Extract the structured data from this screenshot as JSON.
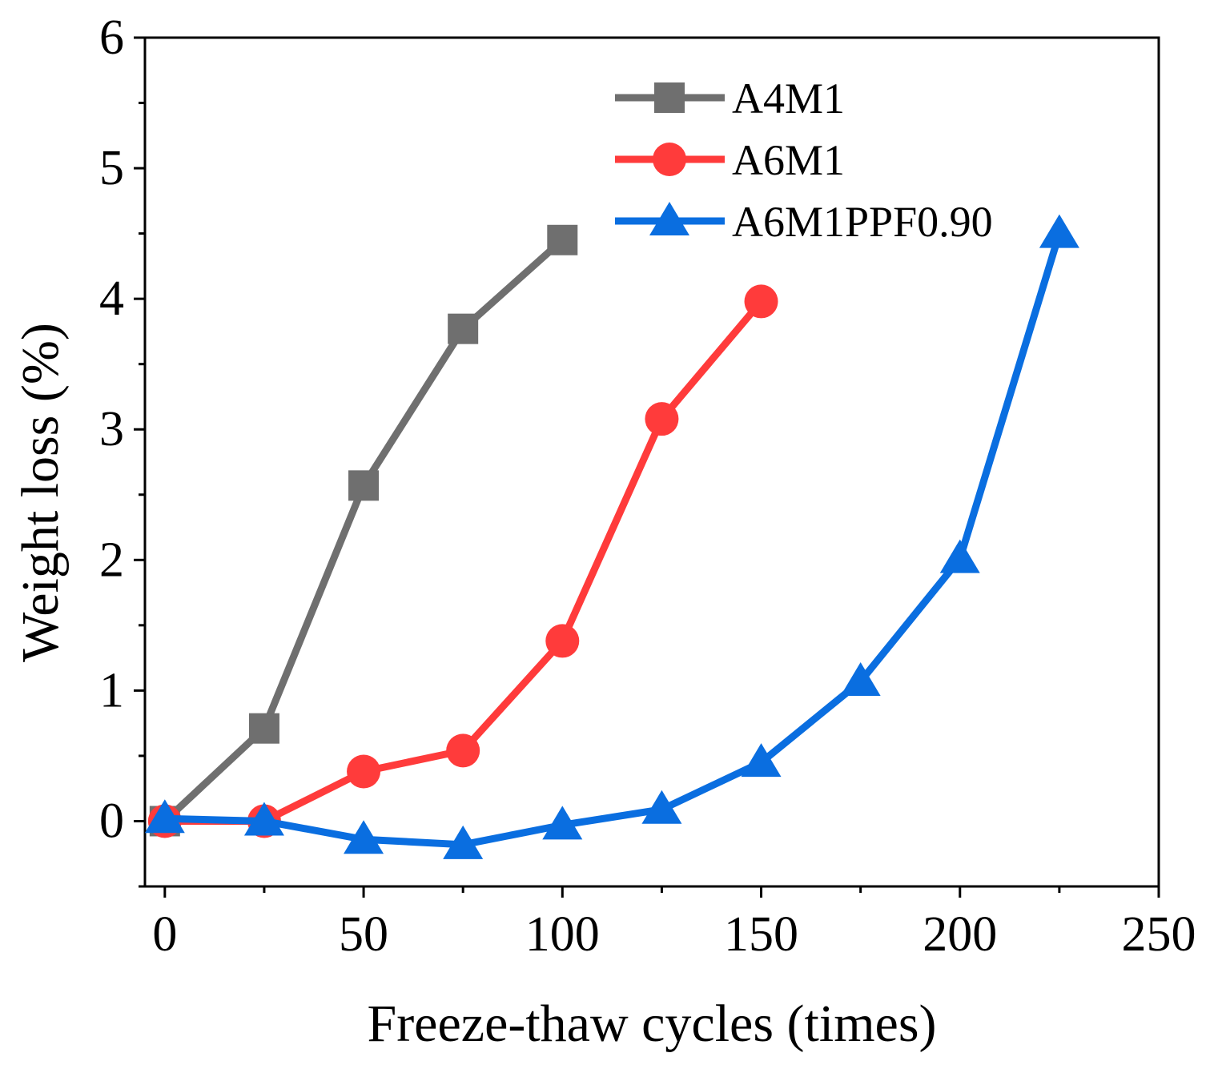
{
  "chart_data": {
    "type": "line",
    "title": "",
    "xlabel": "Freeze-thaw cycles (times)",
    "ylabel": "Weight loss  (%)",
    "xlim": [
      -5,
      250
    ],
    "ylim": [
      -0.5,
      6
    ],
    "xticks": [
      0,
      50,
      100,
      150,
      200,
      250
    ],
    "xtick_labels": [
      "0",
      "50",
      "100",
      "150",
      "200",
      "250"
    ],
    "yticks": [
      0,
      1,
      2,
      3,
      4,
      5,
      6
    ],
    "ytick_labels": [
      "0",
      "1",
      "2",
      "3",
      "4",
      "5",
      "6"
    ],
    "grid": false,
    "legend_position": "top-right",
    "series": [
      {
        "name": "A4M1",
        "color": "#6f6f6f",
        "marker": "square",
        "x": [
          0,
          25,
          50,
          75,
          100
        ],
        "y": [
          0.0,
          0.71,
          2.57,
          3.77,
          4.45
        ]
      },
      {
        "name": "A6M1",
        "color": "#ff3b3b",
        "marker": "circle",
        "x": [
          0,
          25,
          50,
          75,
          100,
          125,
          150
        ],
        "y": [
          0.0,
          0.0,
          0.38,
          0.54,
          1.38,
          3.08,
          3.98
        ]
      },
      {
        "name": "A6M1PPF0.90",
        "color": "#0a6ee0",
        "marker": "triangle",
        "x": [
          0,
          25,
          50,
          75,
          100,
          125,
          150,
          175,
          200,
          225
        ],
        "y": [
          0.02,
          0.0,
          -0.14,
          -0.18,
          -0.03,
          0.09,
          0.45,
          1.07,
          2.01,
          4.5
        ]
      }
    ]
  }
}
